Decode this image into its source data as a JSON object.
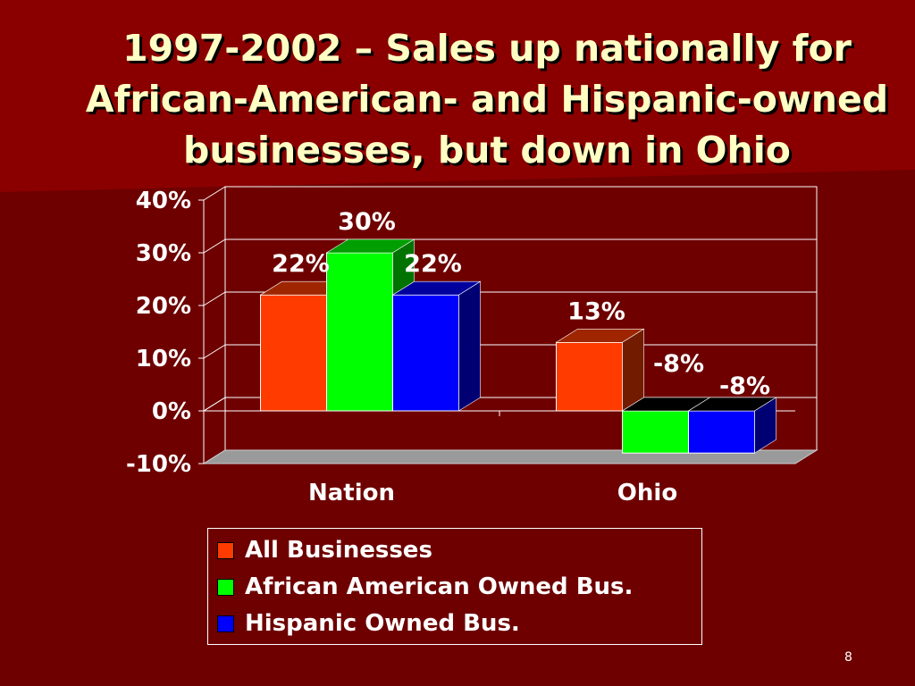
{
  "slide": {
    "title_lines": [
      "1997-2002 – Sales up nationally for",
      "African-American- and Hispanic-owned",
      "businesses, but down in Ohio"
    ],
    "page_number": "8",
    "colors": {
      "background": "#6e0000",
      "title": "#ffffc4"
    }
  },
  "chart_data": {
    "type": "bar",
    "title": "",
    "xlabel": "",
    "ylabel": "",
    "categories": [
      "Nation",
      "Ohio"
    ],
    "series": [
      {
        "name": "All Businesses",
        "values": [
          22,
          13
        ],
        "labels": [
          "22%",
          "13%"
        ],
        "color": "#ff3b00"
      },
      {
        "name": "African American Owned Bus.",
        "values": [
          30,
          -8
        ],
        "labels": [
          "30%",
          "-8%"
        ],
        "color": "#00ff00"
      },
      {
        "name": "Hispanic Owned Bus.",
        "values": [
          22,
          -8
        ],
        "labels": [
          "22%",
          "-8%"
        ],
        "color": "#0000ff"
      }
    ],
    "ylim": [
      -10,
      40
    ],
    "yticks": [
      -10,
      0,
      10,
      20,
      30,
      40
    ],
    "ytick_labels": [
      "-10%",
      "0%",
      "10%",
      "20%",
      "30%",
      "40%"
    ],
    "grid": true,
    "legend_position": "bottom",
    "style": "3d-clustered-column"
  }
}
